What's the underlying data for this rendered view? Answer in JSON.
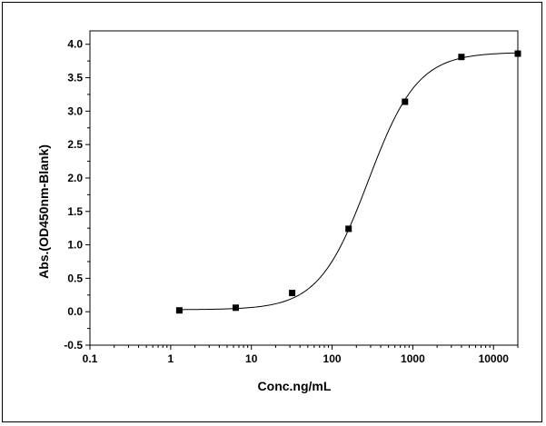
{
  "chart_data": {
    "type": "scatter",
    "title": "",
    "xlabel": "Conc.ng/mL",
    "ylabel": "Abs.(OD450nm-Blank)",
    "xscale": "log",
    "xlim": [
      0.1,
      20000
    ],
    "ylim": [
      -0.5,
      4.2
    ],
    "x_ticks": [
      0.1,
      1,
      10,
      100,
      1000,
      10000
    ],
    "x_tick_labels": [
      "0.1",
      "1",
      "10",
      "100",
      "1000",
      "10000"
    ],
    "y_ticks": [
      -0.5,
      0.0,
      0.5,
      1.0,
      1.5,
      2.0,
      2.5,
      3.0,
      3.5,
      4.0
    ],
    "y_tick_labels": [
      "-0.5",
      "0.0",
      "0.5",
      "1.0",
      "1.5",
      "2.0",
      "2.5",
      "3.0",
      "3.5",
      "4.0"
    ],
    "grid": false,
    "legend": "none",
    "series": [
      {
        "marker": "square",
        "color": "#000000",
        "x": [
          1.28,
          6.4,
          32,
          160,
          800,
          4000,
          20000
        ],
        "y": [
          0.02,
          0.06,
          0.28,
          1.24,
          3.14,
          3.81,
          3.86
        ]
      }
    ],
    "fit_curve": {
      "type": "4PL",
      "color": "#000000",
      "bottom": 0.03,
      "top": 3.88,
      "ec50": 280,
      "hill": 1.42
    }
  }
}
